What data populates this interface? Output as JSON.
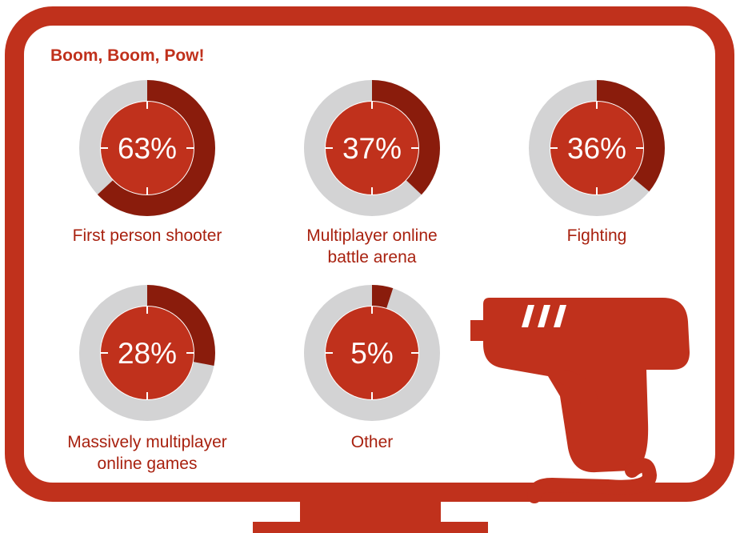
{
  "colors": {
    "frame": "#c0311c",
    "accent": "#8a1c0c",
    "track": "#d3d3d4",
    "center": "#c0311c",
    "text": "#a8210f",
    "white": "#ffffff"
  },
  "icons": {
    "monitor": "monitor-icon",
    "gun": "light-gun-icon"
  },
  "chart_data": {
    "type": "pie",
    "title": "Boom, Boom, Pow!",
    "unit": "%",
    "items": [
      {
        "label": "First person shooter",
        "value": 63,
        "value_label": "63%"
      },
      {
        "label": "Multiplayer online\nbattle arena",
        "value": 37,
        "value_label": "37%"
      },
      {
        "label": "Fighting",
        "value": 36,
        "value_label": "36%"
      },
      {
        "label": "Massively multiplayer\nonline games",
        "value": 28,
        "value_label": "28%"
      },
      {
        "label": "Other",
        "value": 5,
        "value_label": "5%"
      }
    ]
  }
}
